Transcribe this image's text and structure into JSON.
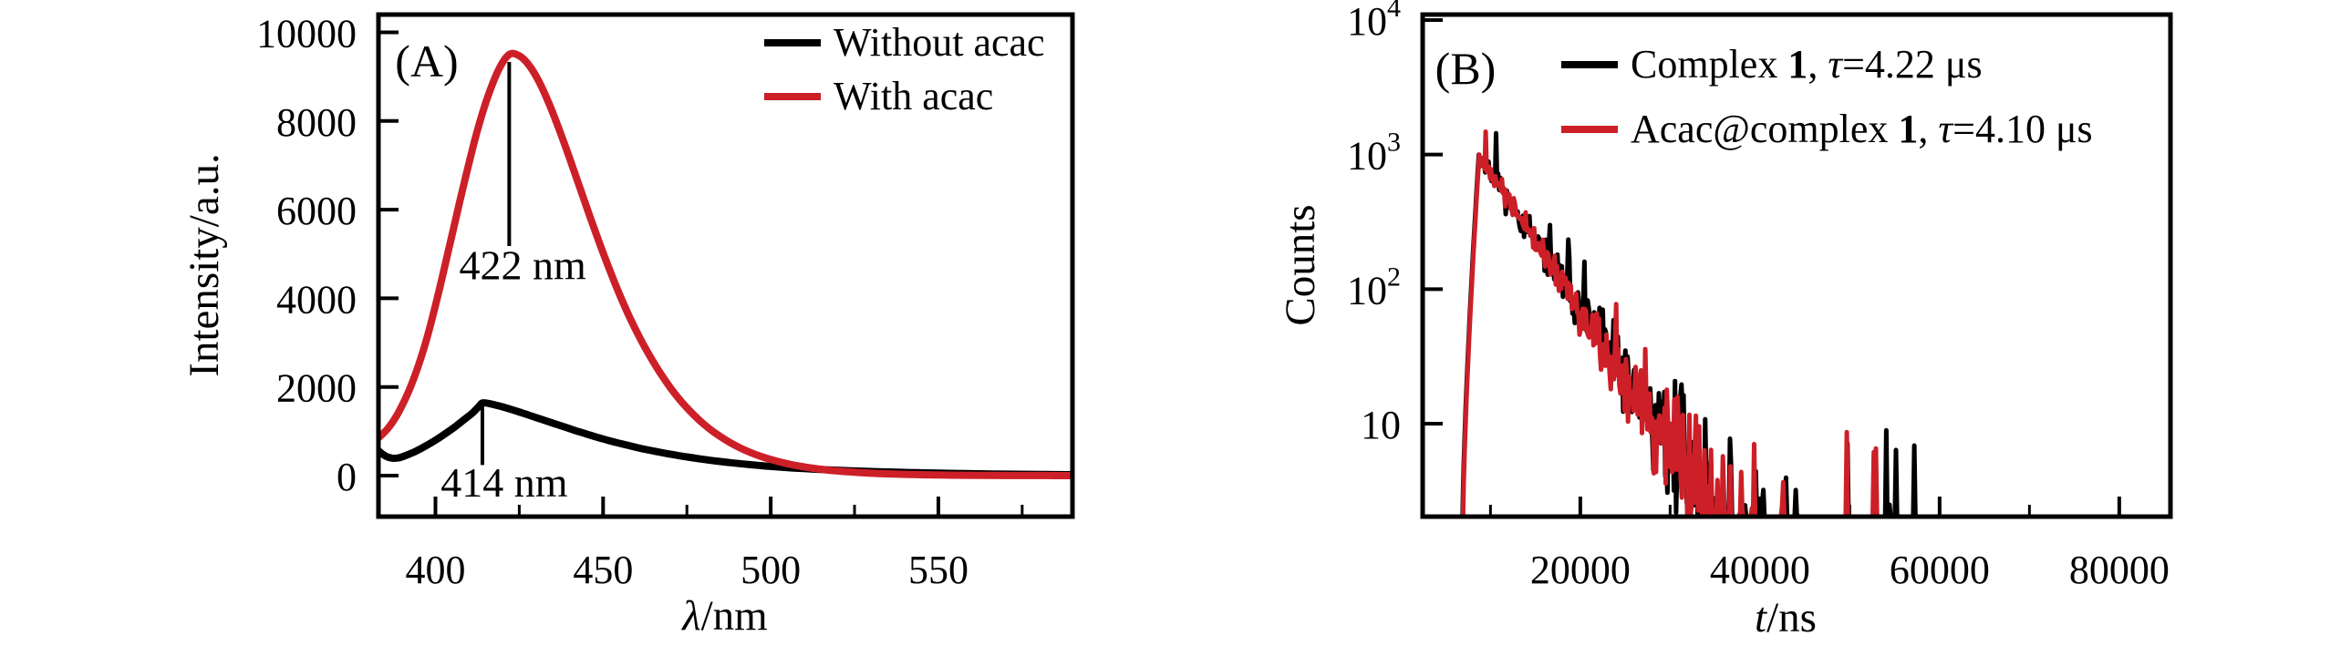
{
  "figure": {
    "background": "#ffffff",
    "curve_black": "#000000",
    "curve_red": "#cd1f28"
  },
  "chart_data": [
    {
      "panel": "A",
      "type": "line",
      "panel_label": "(A)",
      "title": "",
      "xlabel_symbol": "λ",
      "xlabel_rest": "/nm",
      "ylabel": "Intensity/a.u.",
      "xlim": [
        383,
        590
      ],
      "ylim": [
        -925,
        10400
      ],
      "xticks": [
        400,
        450,
        500,
        550
      ],
      "xticks_minor": [
        425,
        475,
        525,
        575
      ],
      "yticks": [
        0,
        2000,
        4000,
        6000,
        8000,
        10000
      ],
      "grid": false,
      "legend_position": "top-right",
      "series": [
        {
          "name": "Without acac",
          "color": "#000000",
          "peak_x_nm": 414,
          "peak_intensity": 1640,
          "points": [
            [
              383,
              560
            ],
            [
              385,
              445
            ],
            [
              387,
              395
            ],
            [
              389,
              400
            ],
            [
              391,
              450
            ],
            [
              394,
              545
            ],
            [
              397,
              665
            ],
            [
              400,
              800
            ],
            [
              403,
              950
            ],
            [
              406,
              1110
            ],
            [
              409,
              1290
            ],
            [
              411,
              1410
            ],
            [
              413,
              1565
            ],
            [
              414,
              1640
            ],
            [
              416,
              1625
            ],
            [
              418,
              1590
            ],
            [
              421,
              1530
            ],
            [
              424,
              1460
            ],
            [
              427,
              1385
            ],
            [
              430,
              1310
            ],
            [
              433,
              1235
            ],
            [
              436,
              1160
            ],
            [
              439,
              1085
            ],
            [
              442,
              1010
            ],
            [
              445,
              940
            ],
            [
              448,
              870
            ],
            [
              451,
              805
            ],
            [
              454,
              745
            ],
            [
              457,
              690
            ],
            [
              460,
              635
            ],
            [
              463,
              585
            ],
            [
              466,
              540
            ],
            [
              469,
              498
            ],
            [
              472,
              458
            ],
            [
              476,
              410
            ],
            [
              480,
              366
            ],
            [
              484,
              327
            ],
            [
              488,
              292
            ],
            [
              492,
              261
            ],
            [
              496,
              233
            ],
            [
              500,
              208
            ],
            [
              505,
              181
            ],
            [
              510,
              158
            ],
            [
              515,
              138
            ],
            [
              520,
              121
            ],
            [
              526,
              103
            ],
            [
              532,
              88
            ],
            [
              538,
              76
            ],
            [
              544,
              65
            ],
            [
              550,
              56
            ],
            [
              558,
              45
            ],
            [
              566,
              37
            ],
            [
              574,
              30
            ],
            [
              582,
              25
            ],
            [
              590,
              20
            ]
          ]
        },
        {
          "name": "With acac",
          "color": "#cd1f28",
          "peak_x_nm": 422,
          "peak_intensity": 9500,
          "points": [
            [
              383,
              850
            ],
            [
              386,
              1080
            ],
            [
              389,
              1430
            ],
            [
              392,
              1900
            ],
            [
              395,
              2500
            ],
            [
              398,
              3250
            ],
            [
              401,
              4150
            ],
            [
              404,
              5120
            ],
            [
              407,
              6100
            ],
            [
              410,
              7050
            ],
            [
              413,
              7920
            ],
            [
              416,
              8630
            ],
            [
              419,
              9180
            ],
            [
              422,
              9500
            ],
            [
              425,
              9470
            ],
            [
              428,
              9250
            ],
            [
              431,
              8870
            ],
            [
              434,
              8370
            ],
            [
              437,
              7790
            ],
            [
              440,
              7160
            ],
            [
              443,
              6510
            ],
            [
              446,
              5860
            ],
            [
              449,
              5230
            ],
            [
              452,
              4630
            ],
            [
              455,
              4070
            ],
            [
              458,
              3560
            ],
            [
              461,
              3100
            ],
            [
              464,
              2690
            ],
            [
              467,
              2320
            ],
            [
              470,
              1990
            ],
            [
              473,
              1700
            ],
            [
              476,
              1450
            ],
            [
              479,
              1230
            ],
            [
              482,
              1040
            ],
            [
              485,
              880
            ],
            [
              488,
              740
            ],
            [
              491,
              620
            ],
            [
              494,
              520
            ],
            [
              497,
              435
            ],
            [
              500,
              365
            ],
            [
              504,
              285
            ],
            [
              508,
              222
            ],
            [
              512,
              172
            ],
            [
              516,
              134
            ],
            [
              520,
              104
            ],
            [
              525,
              75
            ],
            [
              530,
              54
            ],
            [
              535,
              39
            ],
            [
              540,
              28
            ],
            [
              546,
              19
            ],
            [
              552,
              12
            ],
            [
              558,
              8
            ],
            [
              566,
              4
            ],
            [
              574,
              2
            ],
            [
              582,
              1
            ],
            [
              590,
              0
            ]
          ]
        }
      ],
      "annotations": [
        {
          "label": "422 nm",
          "x": 422,
          "line_from": 9330,
          "line_to": 5180,
          "label_x": 426,
          "label_y": 4430
        },
        {
          "label": "414 nm",
          "x": 414,
          "line_from": 1570,
          "line_to": 240,
          "label_x": 420.5,
          "label_y": -470
        }
      ]
    },
    {
      "panel": "B",
      "type": "line",
      "panel_label": "(B)",
      "title": "",
      "xlabel_symbol": "t",
      "xlabel_rest": "/ns",
      "ylabel": "Counts",
      "xscale": "linear",
      "yscale": "log",
      "xlim": [
        2450,
        85700
      ],
      "ylim": [
        2.04,
        10980
      ],
      "xticks": [
        20000,
        40000,
        60000,
        80000
      ],
      "xticks_minor": [
        10000,
        30000,
        50000,
        70000
      ],
      "yticks": [
        {
          "value": 10000,
          "base": "10",
          "exp": "4"
        },
        {
          "value": 1000,
          "base": "10",
          "exp": "3"
        },
        {
          "value": 100,
          "base": "10",
          "exp": "2"
        },
        {
          "value": 10,
          "base": "10",
          "exp": ""
        }
      ],
      "grid": false,
      "legend_position": "top",
      "series": [
        {
          "name_pre": "Complex ",
          "name_bold": "1",
          "sep": ", ",
          "tau_symbol": "τ",
          "tau_text": "=4.22 μs",
          "color": "#000000",
          "decay": {
            "t_rise_ns": 6900,
            "t_peak_ns": 8700,
            "peak_counts": 1000,
            "tau_ns": 4220,
            "bg_counts": 3.2,
            "bg_tau_ns": 18000,
            "t_end_ns": 57500,
            "noise_seed": 11
          }
        },
        {
          "name_pre": "Acac@complex ",
          "name_bold": "1",
          "sep": ", ",
          "tau_symbol": "τ",
          "tau_text": "=4.10 μs",
          "color": "#cd1f28",
          "decay": {
            "t_rise_ns": 6950,
            "t_peak_ns": 8750,
            "peak_counts": 1000,
            "tau_ns": 4100,
            "bg_counts": 3.2,
            "bg_tau_ns": 18000,
            "t_end_ns": 53200,
            "noise_seed": 97
          }
        }
      ]
    }
  ]
}
